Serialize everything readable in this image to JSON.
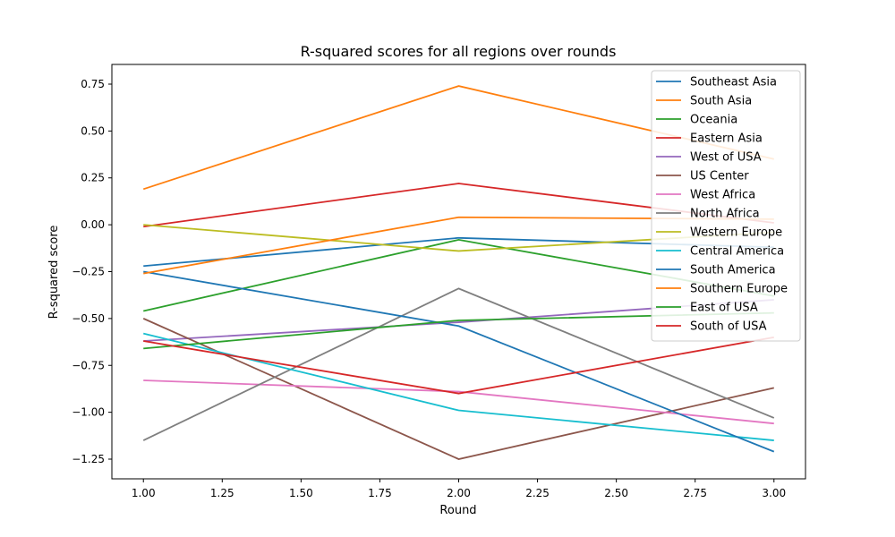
{
  "chart_data": {
    "type": "line",
    "title": "R-squared scores for all regions over rounds",
    "xlabel": "Round",
    "ylabel": "R-squared score",
    "x": [
      1,
      2,
      3
    ],
    "xlim": [
      0.9,
      3.1
    ],
    "ylim": [
      -1.355,
      0.855
    ],
    "xticks": [
      "1.00",
      "1.25",
      "1.50",
      "1.75",
      "2.00",
      "2.25",
      "2.50",
      "2.75",
      "3.00"
    ],
    "xtick_values": [
      1.0,
      1.25,
      1.5,
      1.75,
      2.0,
      2.25,
      2.5,
      2.75,
      3.0
    ],
    "yticks": [
      "0.75",
      "0.50",
      "0.25",
      "0.00",
      "−0.25",
      "−0.50",
      "−0.75",
      "−1.00",
      "−1.25"
    ],
    "ytick_values": [
      0.75,
      0.5,
      0.25,
      0.0,
      -0.25,
      -0.5,
      -0.75,
      -1.0,
      -1.25
    ],
    "grid": false,
    "legend_position": "top-right",
    "series": [
      {
        "name": "Southeast Asia",
        "color": "#1f77b4",
        "values": [
          -0.22,
          -0.07,
          -0.12
        ]
      },
      {
        "name": "South Asia",
        "color": "#ff7f0e",
        "values": [
          0.19,
          0.74,
          0.35
        ]
      },
      {
        "name": "Oceania",
        "color": "#2ca02c",
        "values": [
          -0.46,
          -0.08,
          -0.38
        ]
      },
      {
        "name": "Eastern Asia",
        "color": "#d62728",
        "values": [
          -0.01,
          0.22,
          0.01
        ]
      },
      {
        "name": "West of USA",
        "color": "#9467bd",
        "values": [
          -0.62,
          -0.52,
          -0.4
        ]
      },
      {
        "name": "US Center",
        "color": "#8c564b",
        "values": [
          -0.5,
          -1.25,
          -0.87
        ]
      },
      {
        "name": "West Africa",
        "color": "#e377c2",
        "values": [
          -0.83,
          -0.89,
          -1.06
        ]
      },
      {
        "name": "North Africa",
        "color": "#7f7f7f",
        "values": [
          -1.15,
          -0.34,
          -1.03
        ]
      },
      {
        "name": "Western Europe",
        "color": "#bcbd22",
        "values": [
          0.0,
          -0.14,
          -0.04
        ]
      },
      {
        "name": "Central America",
        "color": "#17becf",
        "values": [
          -0.58,
          -0.99,
          -1.15
        ]
      },
      {
        "name": "South America",
        "color": "#1f77b4",
        "values": [
          -0.25,
          -0.54,
          -1.21
        ]
      },
      {
        "name": "Southern Europe",
        "color": "#ff7f0e",
        "values": [
          -0.26,
          0.04,
          0.03
        ]
      },
      {
        "name": "East of USA",
        "color": "#2ca02c",
        "values": [
          -0.66,
          -0.51,
          -0.47
        ]
      },
      {
        "name": "South of USA",
        "color": "#d62728",
        "values": [
          -0.62,
          -0.9,
          -0.6
        ]
      }
    ]
  }
}
